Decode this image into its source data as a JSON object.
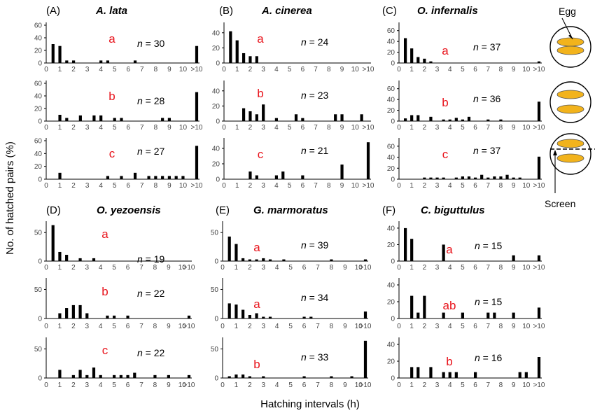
{
  "figure": {
    "ylabel": "No. of hatched pairs (%)",
    "xlabel": "Hatching intervals (h)",
    "x_tick_labels": [
      "0",
      "1",
      "2",
      "3",
      "4",
      "5",
      "6",
      "7",
      "8",
      "9",
      "10",
      ">10"
    ],
    "n_prefix": "n",
    "colors": {
      "bars": "#000000",
      "letters": "#e8131b",
      "egg": "#f2b31c",
      "axis": "#000000",
      "tick_text": "#444444"
    }
  },
  "legend": {
    "egg_label": "Egg",
    "screen_label": "Screen"
  },
  "chart_data": [
    {
      "id": "A",
      "panel_label": "(A)",
      "title": "A. lata",
      "type": "bar",
      "xlim": [
        0,
        11
      ],
      "x_ticks": [
        0,
        1,
        2,
        3,
        4,
        5,
        6,
        7,
        8,
        9,
        10,
        11
      ],
      "rows": [
        {
          "ylim": [
            0,
            60
          ],
          "yticks": [
            0,
            20,
            40,
            60
          ],
          "letter": "a",
          "n": 30,
          "bars": [
            {
              "x": 0.5,
              "y": 30
            },
            {
              "x": 1,
              "y": 27
            },
            {
              "x": 1.5,
              "y": 4
            },
            {
              "x": 2,
              "y": 4
            },
            {
              "x": 4,
              "y": 4
            },
            {
              "x": 4.5,
              "y": 4
            },
            {
              "x": 6.5,
              "y": 4
            },
            {
              "x": 11,
              "y": 27
            }
          ]
        },
        {
          "ylim": [
            0,
            60
          ],
          "yticks": [
            0,
            20,
            40,
            60
          ],
          "letter": "b",
          "n": 28,
          "bars": [
            {
              "x": 1,
              "y": 10
            },
            {
              "x": 1.5,
              "y": 5
            },
            {
              "x": 2.5,
              "y": 9
            },
            {
              "x": 3.5,
              "y": 9
            },
            {
              "x": 4,
              "y": 9
            },
            {
              "x": 5,
              "y": 5
            },
            {
              "x": 5.5,
              "y": 5
            },
            {
              "x": 8.5,
              "y": 5
            },
            {
              "x": 9,
              "y": 5
            },
            {
              "x": 11,
              "y": 46
            }
          ]
        },
        {
          "ylim": [
            0,
            60
          ],
          "yticks": [
            0,
            20,
            40,
            60
          ],
          "letter": "c",
          "n": 27,
          "bars": [
            {
              "x": 1,
              "y": 10
            },
            {
              "x": 4.5,
              "y": 5
            },
            {
              "x": 5.5,
              "y": 5
            },
            {
              "x": 6.5,
              "y": 10
            },
            {
              "x": 7.5,
              "y": 5
            },
            {
              "x": 8,
              "y": 5
            },
            {
              "x": 8.5,
              "y": 5
            },
            {
              "x": 9,
              "y": 5
            },
            {
              "x": 9.5,
              "y": 5
            },
            {
              "x": 10,
              "y": 5
            },
            {
              "x": 11,
              "y": 52
            }
          ]
        }
      ]
    },
    {
      "id": "B",
      "panel_label": "(B)",
      "title": "A. cinerea",
      "type": "bar",
      "xlim": [
        0,
        11
      ],
      "x_ticks": [
        0,
        1,
        2,
        3,
        4,
        5,
        6,
        7,
        8,
        9,
        10,
        11
      ],
      "rows": [
        {
          "ylim": [
            0,
            50
          ],
          "yticks": [
            0,
            20,
            40
          ],
          "letter": "a",
          "n": 24,
          "bars": [
            {
              "x": 0.5,
              "y": 42
            },
            {
              "x": 1,
              "y": 30
            },
            {
              "x": 1.5,
              "y": 13
            },
            {
              "x": 2,
              "y": 9
            },
            {
              "x": 2.5,
              "y": 9
            }
          ]
        },
        {
          "ylim": [
            0,
            50
          ],
          "yticks": [
            0,
            20,
            40
          ],
          "letter": "b",
          "n": 23,
          "bars": [
            {
              "x": 1.5,
              "y": 17
            },
            {
              "x": 2,
              "y": 13
            },
            {
              "x": 2.5,
              "y": 9
            },
            {
              "x": 3,
              "y": 22
            },
            {
              "x": 4,
              "y": 4
            },
            {
              "x": 5.5,
              "y": 9
            },
            {
              "x": 6,
              "y": 4
            },
            {
              "x": 8.5,
              "y": 9
            },
            {
              "x": 9,
              "y": 9
            },
            {
              "x": 10.5,
              "y": 9
            }
          ]
        },
        {
          "ylim": [
            0,
            50
          ],
          "yticks": [
            0,
            20,
            40
          ],
          "letter": "c",
          "n": 21,
          "bars": [
            {
              "x": 2,
              "y": 10
            },
            {
              "x": 2.5,
              "y": 5
            },
            {
              "x": 4,
              "y": 5
            },
            {
              "x": 4.5,
              "y": 10
            },
            {
              "x": 6,
              "y": 5
            },
            {
              "x": 9,
              "y": 19
            },
            {
              "x": 11,
              "y": 48
            }
          ]
        }
      ]
    },
    {
      "id": "C",
      "panel_label": "(C)",
      "title": "O. infernalis",
      "type": "bar",
      "xlim": [
        0,
        11
      ],
      "x_ticks": [
        0,
        1,
        2,
        3,
        4,
        5,
        6,
        7,
        8,
        9,
        10,
        11
      ],
      "rows": [
        {
          "ylim": [
            0,
            70
          ],
          "yticks": [
            0,
            20,
            40,
            60
          ],
          "letter": "a",
          "n": 37,
          "bars": [
            {
              "x": 0.5,
              "y": 46
            },
            {
              "x": 1,
              "y": 27
            },
            {
              "x": 1.5,
              "y": 11
            },
            {
              "x": 2,
              "y": 8
            },
            {
              "x": 2.5,
              "y": 3
            },
            {
              "x": 11,
              "y": 3
            }
          ]
        },
        {
          "ylim": [
            0,
            70
          ],
          "yticks": [
            0,
            20,
            40,
            60
          ],
          "letter": "b",
          "n": 36,
          "bars": [
            {
              "x": 0.5,
              "y": 5
            },
            {
              "x": 1,
              "y": 11
            },
            {
              "x": 1.5,
              "y": 11
            },
            {
              "x": 2.5,
              "y": 8
            },
            {
              "x": 3.5,
              "y": 3
            },
            {
              "x": 4,
              "y": 3
            },
            {
              "x": 4.5,
              "y": 6
            },
            {
              "x": 5,
              "y": 3
            },
            {
              "x": 5.5,
              "y": 8
            },
            {
              "x": 7,
              "y": 3
            },
            {
              "x": 8,
              "y": 3
            },
            {
              "x": 11,
              "y": 36
            }
          ]
        },
        {
          "ylim": [
            0,
            70
          ],
          "yticks": [
            0,
            20,
            40,
            60
          ],
          "letter": "c",
          "n": 37,
          "bars": [
            {
              "x": 2,
              "y": 3
            },
            {
              "x": 2.5,
              "y": 3
            },
            {
              "x": 3,
              "y": 3
            },
            {
              "x": 3.5,
              "y": 3
            },
            {
              "x": 4.5,
              "y": 3
            },
            {
              "x": 5,
              "y": 5
            },
            {
              "x": 5.5,
              "y": 5
            },
            {
              "x": 6,
              "y": 3
            },
            {
              "x": 6.5,
              "y": 8
            },
            {
              "x": 7,
              "y": 3
            },
            {
              "x": 7.5,
              "y": 5
            },
            {
              "x": 8,
              "y": 5
            },
            {
              "x": 8.5,
              "y": 8
            },
            {
              "x": 9,
              "y": 3
            },
            {
              "x": 9.5,
              "y": 3
            },
            {
              "x": 11,
              "y": 41
            }
          ]
        }
      ]
    },
    {
      "id": "D",
      "panel_label": "(D)",
      "title": "O. yezoensis",
      "type": "bar",
      "xlim": [
        0,
        10.5
      ],
      "x_ticks": [
        0,
        1,
        2,
        3,
        4,
        5,
        6,
        7,
        8,
        9,
        10,
        10.5
      ],
      "rows": [
        {
          "ylim": [
            0,
            65
          ],
          "yticks": [
            0,
            50
          ],
          "letter": "a",
          "n": 19,
          "bars": [
            {
              "x": 0.5,
              "y": 63
            },
            {
              "x": 1,
              "y": 16
            },
            {
              "x": 1.5,
              "y": 11
            },
            {
              "x": 2.5,
              "y": 5
            },
            {
              "x": 3.5,
              "y": 5
            }
          ]
        },
        {
          "ylim": [
            0,
            65
          ],
          "yticks": [
            0,
            50
          ],
          "letter": "b",
          "n": 22,
          "bars": [
            {
              "x": 1,
              "y": 9
            },
            {
              "x": 1.5,
              "y": 18
            },
            {
              "x": 2,
              "y": 23
            },
            {
              "x": 2.5,
              "y": 23
            },
            {
              "x": 3,
              "y": 9
            },
            {
              "x": 4.5,
              "y": 5
            },
            {
              "x": 5,
              "y": 5
            },
            {
              "x": 6,
              "y": 5
            },
            {
              "x": 10.5,
              "y": 5
            }
          ]
        },
        {
          "ylim": [
            0,
            65
          ],
          "yticks": [
            0,
            50
          ],
          "letter": "c",
          "n": 22,
          "bars": [
            {
              "x": 1,
              "y": 14
            },
            {
              "x": 2,
              "y": 5
            },
            {
              "x": 2.5,
              "y": 14
            },
            {
              "x": 3,
              "y": 5
            },
            {
              "x": 3.5,
              "y": 18
            },
            {
              "x": 4,
              "y": 5
            },
            {
              "x": 5,
              "y": 5
            },
            {
              "x": 5.5,
              "y": 5
            },
            {
              "x": 6,
              "y": 5
            },
            {
              "x": 6.5,
              "y": 9
            },
            {
              "x": 8,
              "y": 5
            },
            {
              "x": 9,
              "y": 5
            },
            {
              "x": 10.5,
              "y": 5
            }
          ]
        }
      ]
    },
    {
      "id": "E",
      "panel_label": "(E)",
      "title": "G. marmoratus",
      "type": "bar",
      "xlim": [
        0,
        10.5
      ],
      "x_ticks": [
        0,
        1,
        2,
        3,
        4,
        5,
        6,
        7,
        8,
        9,
        10,
        10.5
      ],
      "rows": [
        {
          "ylim": [
            0,
            65
          ],
          "yticks": [
            0,
            50
          ],
          "letter": "a",
          "n": 39,
          "bars": [
            {
              "x": 0.5,
              "y": 43
            },
            {
              "x": 1,
              "y": 30
            },
            {
              "x": 1.5,
              "y": 5
            },
            {
              "x": 2,
              "y": 3
            },
            {
              "x": 2.5,
              "y": 3
            },
            {
              "x": 3,
              "y": 5
            },
            {
              "x": 3.5,
              "y": 3
            },
            {
              "x": 4.5,
              "y": 3
            },
            {
              "x": 8,
              "y": 3
            },
            {
              "x": 10.5,
              "y": 3
            }
          ]
        },
        {
          "ylim": [
            0,
            65
          ],
          "yticks": [
            0,
            50
          ],
          "letter": "a",
          "n": 34,
          "bars": [
            {
              "x": 0.5,
              "y": 26
            },
            {
              "x": 1,
              "y": 24
            },
            {
              "x": 1.5,
              "y": 15
            },
            {
              "x": 2,
              "y": 6
            },
            {
              "x": 2.5,
              "y": 9
            },
            {
              "x": 3,
              "y": 3
            },
            {
              "x": 3.5,
              "y": 3
            },
            {
              "x": 6,
              "y": 3
            },
            {
              "x": 6.5,
              "y": 3
            },
            {
              "x": 10.5,
              "y": 12
            }
          ]
        },
        {
          "ylim": [
            0,
            65
          ],
          "yticks": [
            0,
            50
          ],
          "letter": "b",
          "n": 33,
          "bars": [
            {
              "x": 0.5,
              "y": 3
            },
            {
              "x": 1,
              "y": 6
            },
            {
              "x": 1.5,
              "y": 6
            },
            {
              "x": 2,
              "y": 3
            },
            {
              "x": 3,
              "y": 3
            },
            {
              "x": 6,
              "y": 3
            },
            {
              "x": 8,
              "y": 3
            },
            {
              "x": 9.5,
              "y": 3
            },
            {
              "x": 10.5,
              "y": 64
            }
          ]
        }
      ]
    },
    {
      "id": "F",
      "panel_label": "(F)",
      "title": "C. biguttulus",
      "type": "bar",
      "xlim": [
        0,
        11
      ],
      "x_ticks": [
        0,
        1,
        2,
        3,
        4,
        5,
        6,
        7,
        8,
        9,
        10,
        11
      ],
      "rows": [
        {
          "ylim": [
            0,
            45
          ],
          "yticks": [
            0,
            20,
            40
          ],
          "letter": "a",
          "n": 15,
          "bars": [
            {
              "x": 0.5,
              "y": 40
            },
            {
              "x": 1,
              "y": 27
            },
            {
              "x": 3.5,
              "y": 20
            },
            {
              "x": 9,
              "y": 7
            },
            {
              "x": 11,
              "y": 7
            }
          ]
        },
        {
          "ylim": [
            0,
            45
          ],
          "yticks": [
            0,
            20,
            40
          ],
          "letter": "ab",
          "n": 15,
          "bars": [
            {
              "x": 1,
              "y": 27
            },
            {
              "x": 1.5,
              "y": 7
            },
            {
              "x": 2,
              "y": 27
            },
            {
              "x": 3.5,
              "y": 7
            },
            {
              "x": 5,
              "y": 7
            },
            {
              "x": 7,
              "y": 7
            },
            {
              "x": 7.5,
              "y": 7
            },
            {
              "x": 9,
              "y": 7
            },
            {
              "x": 11,
              "y": 13
            }
          ]
        },
        {
          "ylim": [
            0,
            45
          ],
          "yticks": [
            0,
            20,
            40
          ],
          "letter": "b",
          "n": 16,
          "bars": [
            {
              "x": 1,
              "y": 13
            },
            {
              "x": 1.5,
              "y": 13
            },
            {
              "x": 2.5,
              "y": 13
            },
            {
              "x": 3.5,
              "y": 7
            },
            {
              "x": 4,
              "y": 7
            },
            {
              "x": 4.5,
              "y": 7
            },
            {
              "x": 6,
              "y": 7
            },
            {
              "x": 9.5,
              "y": 7
            },
            {
              "x": 10,
              "y": 7
            },
            {
              "x": 11,
              "y": 25
            }
          ]
        }
      ]
    }
  ]
}
